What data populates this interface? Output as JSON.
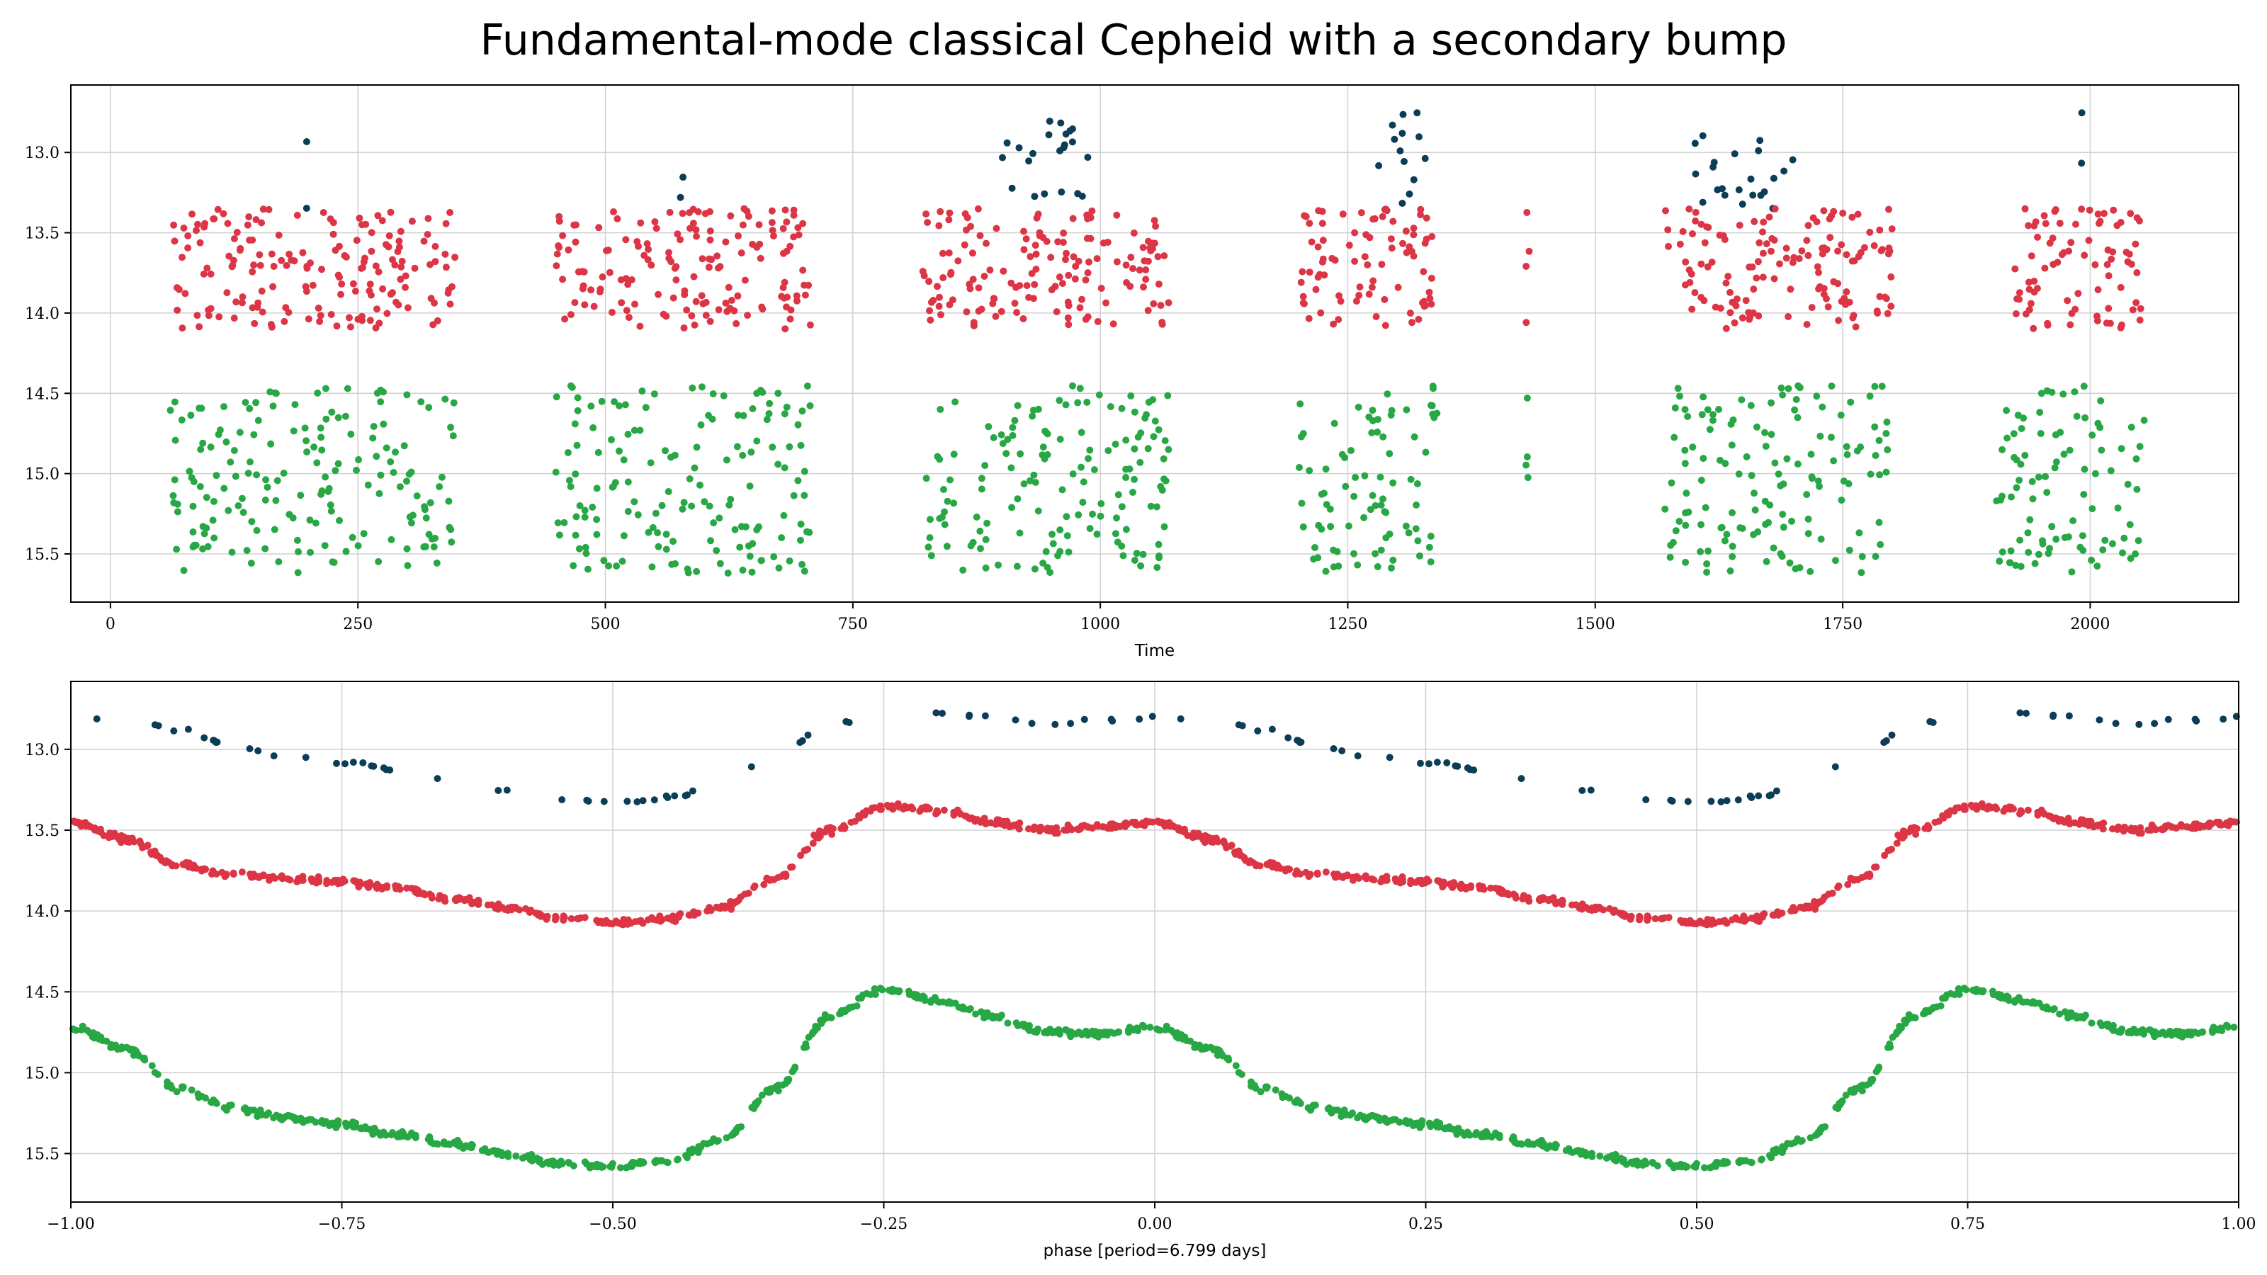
{
  "title": "Fundamental-mode classical Cepheid with a secondary bump",
  "chart_data": [
    {
      "type": "scatter",
      "xlabel": "Time",
      "ylabel": "",
      "xlim": [
        -40,
        2150
      ],
      "ylim": [
        15.8,
        12.58
      ],
      "y_inverted": true,
      "xticks": [
        0,
        250,
        500,
        750,
        1000,
        1250,
        1500,
        1750,
        2000
      ],
      "yticks": [
        13.0,
        13.5,
        14.0,
        14.5,
        15.0,
        15.5
      ],
      "grid": true,
      "series": [
        {
          "color": "#0b3d57",
          "values_range": [
            12.75,
            13.35
          ],
          "observing_seasons": [
            [
              195,
              200
            ],
            [
              575,
              580
            ],
            [
              890,
              990
            ],
            [
              1280,
              1340
            ],
            [
              1600,
              1700
            ],
            [
              1990,
              1995
            ]
          ]
        },
        {
          "color": "#dc3545",
          "values_range": [
            13.35,
            14.1
          ],
          "observing_seasons": [
            [
              60,
              350
            ],
            [
              450,
              710
            ],
            [
              820,
              1070
            ],
            [
              1200,
              1340
            ],
            [
              1430,
              1435
            ],
            [
              1570,
              1800
            ],
            [
              1920,
              2055
            ]
          ]
        },
        {
          "color": "#28a745",
          "values_range": [
            14.45,
            15.62
          ],
          "observing_seasons": [
            [
              60,
              350
            ],
            [
              450,
              710
            ],
            [
              820,
              1070
            ],
            [
              1200,
              1340
            ],
            [
              1430,
              1435
            ],
            [
              1570,
              1800
            ],
            [
              1900,
              2055
            ]
          ]
        }
      ]
    },
    {
      "type": "scatter",
      "xlabel": "phase [period=6.799 days]",
      "ylabel": "",
      "xlim": [
        -1.0,
        1.0
      ],
      "ylim": [
        15.8,
        12.58
      ],
      "y_inverted": true,
      "xticks": [
        -1.0,
        -0.75,
        -0.5,
        -0.25,
        0.0,
        0.25,
        0.5,
        0.75,
        1.0
      ],
      "xtick_labels": [
        "−1.00",
        "−0.75",
        "−0.50",
        "−0.25",
        "0.00",
        "0.25",
        "0.50",
        "0.75",
        "1.00"
      ],
      "yticks": [
        13.0,
        13.5,
        14.0,
        14.5,
        15.0,
        15.5
      ],
      "grid": true,
      "period_days": 6.799,
      "series": [
        {
          "color": "#0b3d57",
          "phase_curve": {
            "phase": [
              0.0,
              0.05,
              0.1,
              0.15,
              0.2,
              0.25,
              0.3,
              0.35,
              0.4,
              0.45,
              0.5,
              0.55,
              0.6,
              0.65,
              0.7,
              0.75,
              0.8,
              0.85,
              0.9,
              0.95,
              1.0
            ],
            "mag": [
              12.8,
              12.82,
              12.88,
              12.98,
              13.05,
              13.08,
              13.12,
              13.18,
              13.26,
              13.31,
              13.33,
              13.3,
              13.2,
              13.05,
              12.85,
              12.75,
              12.77,
              12.8,
              12.84,
              12.82,
              12.8
            ]
          }
        },
        {
          "color": "#dc3545",
          "phase_curve": {
            "phase": [
              0.0,
              0.05,
              0.1,
              0.15,
              0.2,
              0.25,
              0.3,
              0.35,
              0.4,
              0.45,
              0.5,
              0.55,
              0.6,
              0.65,
              0.7,
              0.75,
              0.8,
              0.85,
              0.9,
              0.95,
              1.0
            ],
            "mag": [
              13.45,
              13.55,
              13.72,
              13.78,
              13.8,
              13.82,
              13.86,
              13.92,
              13.98,
              14.04,
              14.07,
              14.05,
              13.98,
              13.8,
              13.5,
              13.35,
              13.38,
              13.45,
              13.5,
              13.48,
              13.45
            ]
          }
        },
        {
          "color": "#28a745",
          "phase_curve": {
            "phase": [
              0.0,
              0.05,
              0.1,
              0.15,
              0.2,
              0.25,
              0.3,
              0.35,
              0.4,
              0.45,
              0.5,
              0.55,
              0.6,
              0.65,
              0.7,
              0.75,
              0.8,
              0.85,
              0.9,
              0.95,
              1.0
            ],
            "mag": [
              14.72,
              14.85,
              15.1,
              15.22,
              15.28,
              15.32,
              15.38,
              15.44,
              15.5,
              15.56,
              15.58,
              15.55,
              15.42,
              15.1,
              14.65,
              14.48,
              14.55,
              14.65,
              14.75,
              14.76,
              14.72
            ]
          }
        }
      ]
    }
  ]
}
